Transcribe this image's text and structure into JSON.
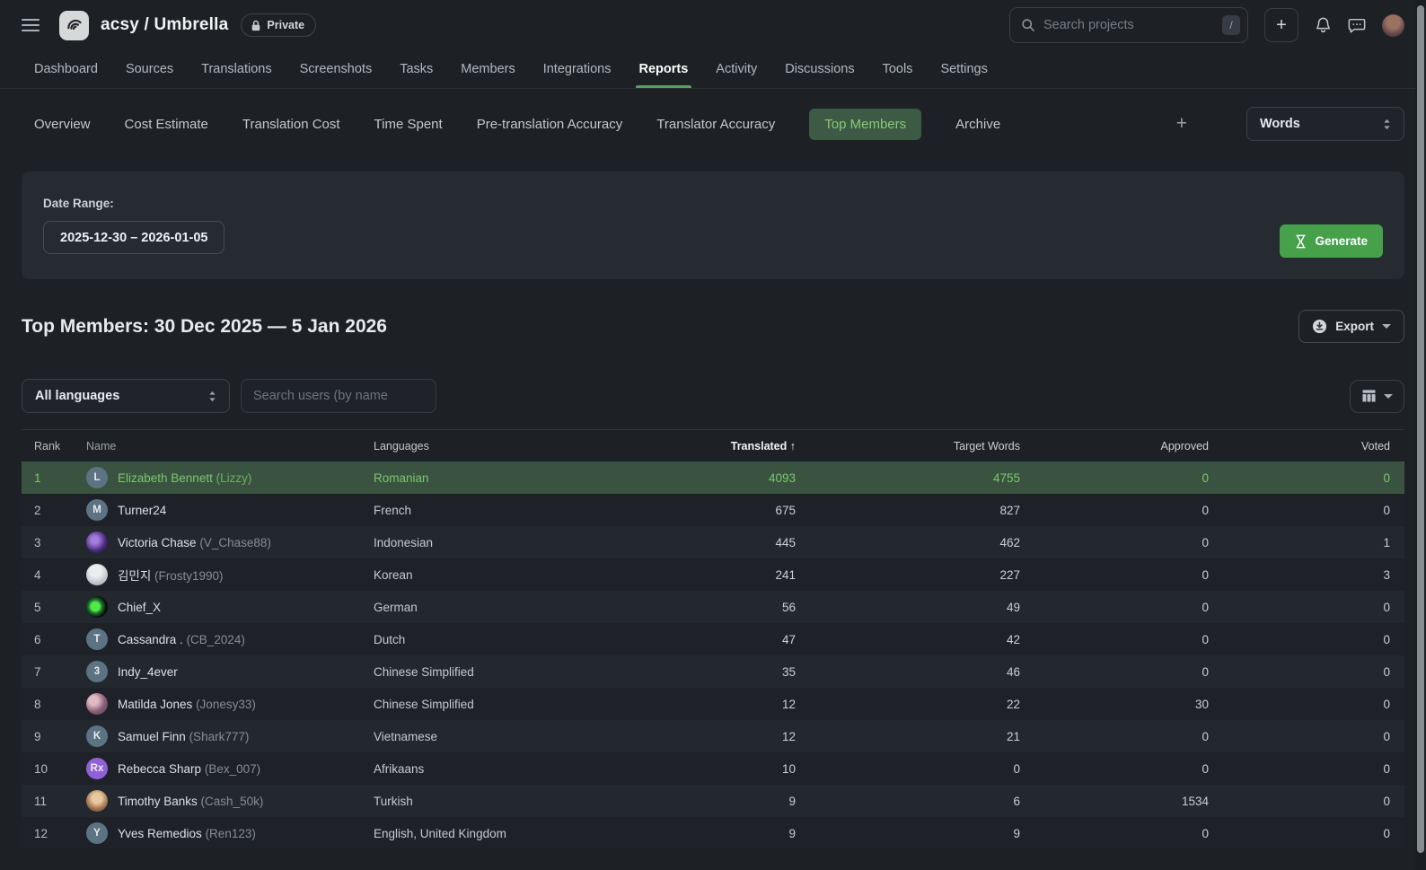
{
  "header": {
    "title": "acsy / Umbrella",
    "private_label": "Private",
    "search_placeholder": "Search projects",
    "search_shortcut": "/",
    "new_button_label": "+"
  },
  "nav": {
    "active": "Reports",
    "tabs": [
      "Dashboard",
      "Sources",
      "Translations",
      "Screenshots",
      "Tasks",
      "Members",
      "Integrations",
      "Reports",
      "Activity",
      "Discussions",
      "Tools",
      "Settings"
    ]
  },
  "subnav": {
    "active": "Top Members",
    "tabs": [
      "Overview",
      "Cost Estimate",
      "Translation Cost",
      "Time Spent",
      "Pre-translation Accuracy",
      "Translator Accuracy",
      "Top Members",
      "Archive"
    ],
    "add_label": "+",
    "unit_select_value": "Words"
  },
  "date_panel": {
    "label": "Date Range:",
    "value": "2025-12-30 – 2026-01-05",
    "generate_label": "Generate"
  },
  "section": {
    "title": "Top Members: 30 Dec 2025 — 5 Jan 2026",
    "export_label": "Export"
  },
  "filters": {
    "language_select_value": "All languages",
    "user_search_placeholder": "Search users (by name"
  },
  "colors": {
    "accent_green": "#47a14b",
    "active_tab_bg": "#3d5a44",
    "active_tab_text": "#89ca78",
    "highlight_row_bg": "#3a5340",
    "highlight_row_text": "#7dc56f",
    "avatar_slate": "#5b7383",
    "avatar_purple": "#9061d6"
  },
  "table": {
    "columns": [
      {
        "label": "Rank",
        "sorted": false
      },
      {
        "label": "Name",
        "sorted": false
      },
      {
        "label": "Languages",
        "sorted": false
      },
      {
        "label": "Translated",
        "sorted": true,
        "sort_dir": "↑"
      },
      {
        "label": "Target Words",
        "sorted": false
      },
      {
        "label": "Approved",
        "sorted": false
      },
      {
        "label": "Voted",
        "sorted": false
      }
    ],
    "rows": [
      {
        "rank": "1",
        "name": "Elizabeth Bennett",
        "username": "(Lizzy)",
        "languages": "Romanian",
        "translated": "4093",
        "target_words": "4755",
        "approved": "0",
        "voted": "0",
        "highlighted": true,
        "avatar": {
          "kind": "initial",
          "label": "L",
          "bg": "#5b7383"
        }
      },
      {
        "rank": "2",
        "name": "Turner24",
        "username": "",
        "languages": "French",
        "translated": "675",
        "target_words": "827",
        "approved": "0",
        "voted": "0",
        "highlighted": false,
        "avatar": {
          "kind": "initial",
          "label": "M",
          "bg": "#5b7383"
        }
      },
      {
        "rank": "3",
        "name": "Victoria Chase",
        "username": "(V_Chase88)",
        "languages": "Indonesian",
        "translated": "445",
        "target_words": "462",
        "approved": "0",
        "voted": "1",
        "highlighted": false,
        "avatar": {
          "kind": "photo",
          "label": "",
          "bg": "radial-gradient(circle at 40% 40%, #a47ddb 0 20%, #43277a 60%, #1e1433)"
        }
      },
      {
        "rank": "4",
        "name": "김민지",
        "username": "(Frosty1990)",
        "languages": "Korean",
        "translated": "241",
        "target_words": "227",
        "approved": "0",
        "voted": "3",
        "highlighted": false,
        "avatar": {
          "kind": "photo",
          "label": "",
          "bg": "radial-gradient(circle at 45% 35%, #ecedef 0 30%, #b9bcc2 70%, #8f939b)"
        }
      },
      {
        "rank": "5",
        "name": "Chief_X",
        "username": "",
        "languages": "German",
        "translated": "56",
        "target_words": "49",
        "approved": "0",
        "voted": "0",
        "highlighted": false,
        "avatar": {
          "kind": "photo",
          "label": "",
          "bg": "radial-gradient(circle at 42% 48%, #53e948 0 26%, #1c7a2e 40%, #0b0c0e 65%)"
        }
      },
      {
        "rank": "6",
        "name": "Cassandra .",
        "username": "(CB_2024)",
        "languages": "Dutch",
        "translated": "47",
        "target_words": "42",
        "approved": "0",
        "voted": "0",
        "highlighted": false,
        "avatar": {
          "kind": "initial",
          "label": "T",
          "bg": "#5b7383"
        }
      },
      {
        "rank": "7",
        "name": "Indy_4ever",
        "username": "",
        "languages": "Chinese Simplified",
        "translated": "35",
        "target_words": "46",
        "approved": "0",
        "voted": "0",
        "highlighted": false,
        "avatar": {
          "kind": "initial",
          "label": "3",
          "bg": "#5b7383"
        }
      },
      {
        "rank": "8",
        "name": "Matilda Jones",
        "username": "(Jonesy33)",
        "languages": "Chinese Simplified",
        "translated": "12",
        "target_words": "22",
        "approved": "30",
        "voted": "0",
        "highlighted": false,
        "avatar": {
          "kind": "photo",
          "label": "",
          "bg": "radial-gradient(circle at 35% 35%, #e0b9c4 0 22%, #8a5f78 55%, #4a3550)"
        }
      },
      {
        "rank": "9",
        "name": "Samuel Finn",
        "username": "(Shark777)",
        "languages": "Vietnamese",
        "translated": "12",
        "target_words": "21",
        "approved": "0",
        "voted": "0",
        "highlighted": false,
        "avatar": {
          "kind": "initial",
          "label": "K",
          "bg": "#5b7383"
        }
      },
      {
        "rank": "10",
        "name": "Rebecca Sharp",
        "username": "(Bex_007)",
        "languages": "Afrikaans",
        "translated": "10",
        "target_words": "0",
        "approved": "0",
        "voted": "0",
        "highlighted": false,
        "avatar": {
          "kind": "initial",
          "label": "Rx",
          "bg": "#9061d6"
        }
      },
      {
        "rank": "11",
        "name": "Timothy Banks",
        "username": "(Cash_50k)",
        "languages": "Turkish",
        "translated": "9",
        "target_words": "6",
        "approved": "1534",
        "voted": "0",
        "highlighted": false,
        "avatar": {
          "kind": "photo",
          "label": "",
          "bg": "radial-gradient(circle at 50% 38%, #e8c9a0 0 28%, #9a6b4a 65%, #5f4030)"
        }
      },
      {
        "rank": "12",
        "name": "Yves Remedios",
        "username": "(Ren123)",
        "languages": "English, United Kingdom",
        "translated": "9",
        "target_words": "9",
        "approved": "0",
        "voted": "0",
        "highlighted": false,
        "avatar": {
          "kind": "initial",
          "label": "Y",
          "bg": "#5b7383"
        }
      }
    ]
  }
}
